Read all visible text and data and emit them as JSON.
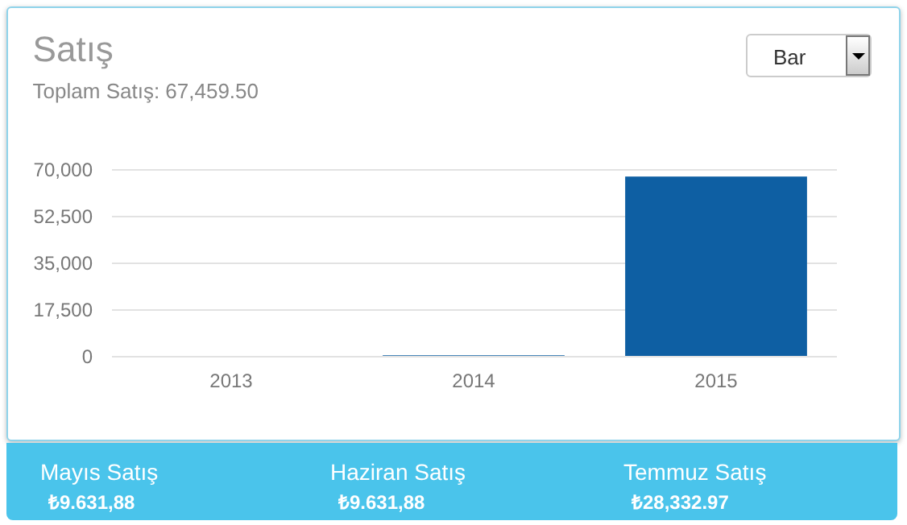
{
  "chart_data": {
    "type": "bar",
    "title": "Satış",
    "subtitle": "Toplam Satış: 67,459.50",
    "categories": [
      "2013",
      "2014",
      "2015"
    ],
    "values": [
      0,
      200,
      67200
    ],
    "color": "#0e5fa3",
    "ylim": [
      0,
      70000
    ],
    "yticks": [
      {
        "value": 0,
        "label": "0"
      },
      {
        "value": 17500,
        "label": "17,500"
      },
      {
        "value": 35000,
        "label": "35,000"
      },
      {
        "value": 52500,
        "label": "52,500"
      },
      {
        "value": 70000,
        "label": "70,000"
      }
    ],
    "grid": "y",
    "annotations": [
      "Bar",
      "Mayıs Satış",
      "₺9.631,88",
      "Haziran Satış",
      "₺9.631,88",
      "Temmuz Satış",
      "₺28,332.97"
    ]
  }
}
